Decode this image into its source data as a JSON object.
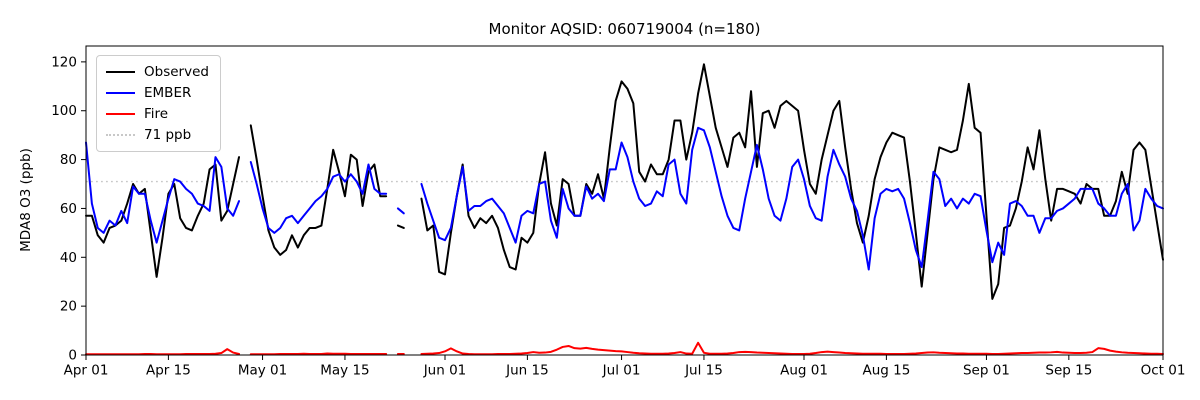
{
  "chart_data": {
    "type": "line",
    "title": "Monitor AQSID: 060719004 (n=180)",
    "xlabel": "",
    "ylabel": "MDA8 O3 (ppb)",
    "ylim": [
      0,
      126.5
    ],
    "grid": false,
    "x_axis": {
      "unit": "daily, day index 0 = Apr 01",
      "span_days": 183,
      "ticks": [
        {
          "day": 0,
          "label": "Apr 01"
        },
        {
          "day": 14,
          "label": "Apr 15"
        },
        {
          "day": 30,
          "label": "May 01"
        },
        {
          "day": 44,
          "label": "May 15"
        },
        {
          "day": 61,
          "label": "Jun 01"
        },
        {
          "day": 75,
          "label": "Jun 15"
        },
        {
          "day": 91,
          "label": "Jul 01"
        },
        {
          "day": 105,
          "label": "Jul 15"
        },
        {
          "day": 122,
          "label": "Aug 01"
        },
        {
          "day": 136,
          "label": "Aug 15"
        },
        {
          "day": 153,
          "label": "Sep 01"
        },
        {
          "day": 167,
          "label": "Sep 15"
        },
        {
          "day": 183,
          "label": "Oct 01"
        }
      ]
    },
    "y_ticks": [
      0,
      20,
      40,
      60,
      80,
      100,
      120
    ],
    "threshold": {
      "value": 71,
      "label": "71 ppb",
      "color": "#c8c8c8",
      "style": "dotted"
    },
    "legend": {
      "position": "upper-left",
      "entries": [
        {
          "label": "Observed",
          "color": "#000000",
          "style": "solid"
        },
        {
          "label": "EMBER",
          "color": "#0000ff",
          "style": "solid"
        },
        {
          "label": "Fire",
          "color": "#ff0000",
          "style": "solid"
        },
        {
          "label": "71 ppb",
          "color": "#c8c8c8",
          "style": "dotted"
        }
      ]
    },
    "series": [
      {
        "name": "Observed",
        "color": "#000000",
        "values": [
          57,
          57,
          49,
          46,
          52,
          53,
          55,
          62,
          70,
          66,
          68,
          50,
          32,
          48,
          66,
          70,
          56,
          52,
          51,
          57,
          62,
          76,
          78,
          55,
          59,
          70,
          81,
          null,
          94,
          80,
          65,
          51,
          44,
          41,
          43,
          49,
          44,
          49,
          52,
          52,
          53,
          68,
          84,
          75,
          65,
          82,
          80,
          61,
          75,
          78,
          65,
          65,
          null,
          53,
          52,
          null,
          null,
          64,
          51,
          53,
          34,
          33,
          50,
          65,
          78,
          57,
          52,
          56,
          54,
          57,
          52,
          43,
          36,
          35,
          48,
          46,
          50,
          70,
          83,
          62,
          53,
          72,
          70,
          57,
          57,
          70,
          66,
          74,
          64,
          85,
          104,
          112,
          109,
          103,
          75,
          71,
          78,
          74,
          74,
          80,
          96,
          96,
          80,
          91,
          107,
          119,
          106,
          93,
          85,
          77,
          89,
          91,
          85,
          108,
          77,
          99,
          100,
          93,
          102,
          104,
          102,
          100,
          84,
          70,
          66,
          80,
          90,
          100,
          104,
          85,
          68,
          54,
          46,
          57,
          72,
          81,
          87,
          91,
          90,
          89,
          71,
          50,
          28,
          50,
          72,
          85,
          84,
          83,
          84,
          96,
          111,
          93,
          91,
          57,
          23,
          29,
          52,
          53,
          60,
          71,
          85,
          76,
          92,
          72,
          55,
          68,
          68,
          67,
          66,
          62,
          70,
          68,
          68,
          57,
          57,
          63,
          75,
          66,
          84,
          87,
          84,
          69,
          54,
          39
        ]
      },
      {
        "name": "EMBER",
        "color": "#0000ff",
        "values": [
          87,
          62,
          52,
          50,
          55,
          53,
          59,
          54,
          69,
          66,
          66,
          55,
          46,
          55,
          64,
          72,
          71,
          68,
          66,
          62,
          61,
          59,
          81,
          77,
          60,
          57,
          63,
          null,
          79,
          70,
          60,
          52,
          50,
          52,
          56,
          57,
          54,
          57,
          60,
          63,
          65,
          68,
          73,
          74,
          71,
          74,
          71,
          66,
          78,
          68,
          66,
          66,
          null,
          60,
          58,
          null,
          null,
          70,
          62,
          55,
          48,
          47,
          52,
          65,
          77,
          59,
          61,
          61,
          63,
          64,
          61,
          58,
          52,
          46,
          57,
          59,
          58,
          70,
          71,
          55,
          48,
          68,
          60,
          57,
          57,
          69,
          64,
          66,
          63,
          76,
          76,
          87,
          81,
          71,
          64,
          61,
          62,
          67,
          65,
          78,
          80,
          66,
          62,
          84,
          93,
          92,
          85,
          75,
          65,
          57,
          52,
          51,
          64,
          75,
          86,
          76,
          64,
          57,
          55,
          64,
          77,
          80,
          72,
          61,
          56,
          55,
          73,
          84,
          78,
          73,
          64,
          59,
          49,
          35,
          56,
          66,
          68,
          67,
          68,
          64,
          54,
          43,
          36,
          55,
          75,
          72,
          61,
          64,
          60,
          64,
          62,
          66,
          65,
          51,
          38,
          46,
          41,
          62,
          63,
          61,
          57,
          57,
          50,
          56,
          56,
          59,
          60,
          62,
          64,
          68,
          68,
          68,
          62,
          60,
          57,
          57,
          66,
          70,
          51,
          55,
          68,
          64,
          61,
          60
        ]
      },
      {
        "name": "Fire",
        "color": "#ff0000",
        "values": [
          0.3,
          0.3,
          0.3,
          0.3,
          0.3,
          0.3,
          0.3,
          0.3,
          0.3,
          0.3,
          0.4,
          0.4,
          0.3,
          0.3,
          0.3,
          0.3,
          0.3,
          0.4,
          0.4,
          0.4,
          0.4,
          0.4,
          0.5,
          0.8,
          2.4,
          1.0,
          0.4,
          null,
          0.3,
          0.3,
          0.3,
          0.3,
          0.3,
          0.4,
          0.4,
          0.4,
          0.4,
          0.5,
          0.4,
          0.4,
          0.4,
          0.6,
          0.5,
          0.5,
          0.5,
          0.4,
          0.4,
          0.4,
          0.4,
          0.4,
          0.4,
          0.4,
          null,
          0.4,
          0.4,
          null,
          null,
          0.4,
          0.5,
          0.6,
          0.8,
          1.5,
          2.7,
          1.5,
          0.6,
          0.4,
          0.3,
          0.3,
          0.3,
          0.3,
          0.4,
          0.4,
          0.4,
          0.5,
          0.6,
          0.8,
          1.2,
          0.9,
          1.0,
          1.3,
          2.2,
          3.3,
          3.7,
          2.8,
          2.6,
          2.9,
          2.5,
          2.2,
          2.0,
          1.8,
          1.6,
          1.5,
          1.2,
          0.9,
          0.7,
          0.6,
          0.5,
          0.5,
          0.5,
          0.6,
          0.8,
          1.2,
          0.6,
          0.5,
          5.0,
          0.9,
          0.5,
          0.5,
          0.5,
          0.6,
          0.8,
          1.2,
          1.3,
          1.2,
          1.0,
          0.9,
          0.8,
          0.7,
          0.6,
          0.5,
          0.4,
          0.4,
          0.4,
          0.5,
          0.8,
          1.2,
          1.4,
          1.2,
          1.0,
          0.8,
          0.7,
          0.6,
          0.5,
          0.5,
          0.5,
          0.5,
          0.4,
          0.4,
          0.4,
          0.4,
          0.5,
          0.6,
          0.8,
          1.0,
          1.1,
          0.9,
          0.8,
          0.7,
          0.6,
          0.6,
          0.5,
          0.5,
          0.5,
          0.5,
          0.4,
          0.4,
          0.5,
          0.6,
          0.7,
          0.8,
          0.8,
          0.9,
          1.0,
          1.0,
          1.1,
          1.3,
          1.0,
          0.9,
          0.8,
          0.8,
          0.9,
          1.2,
          2.8,
          2.5,
          1.8,
          1.4,
          1.1,
          0.9,
          0.8,
          0.7,
          0.6,
          0.5,
          0.5,
          0.4
        ]
      }
    ]
  }
}
